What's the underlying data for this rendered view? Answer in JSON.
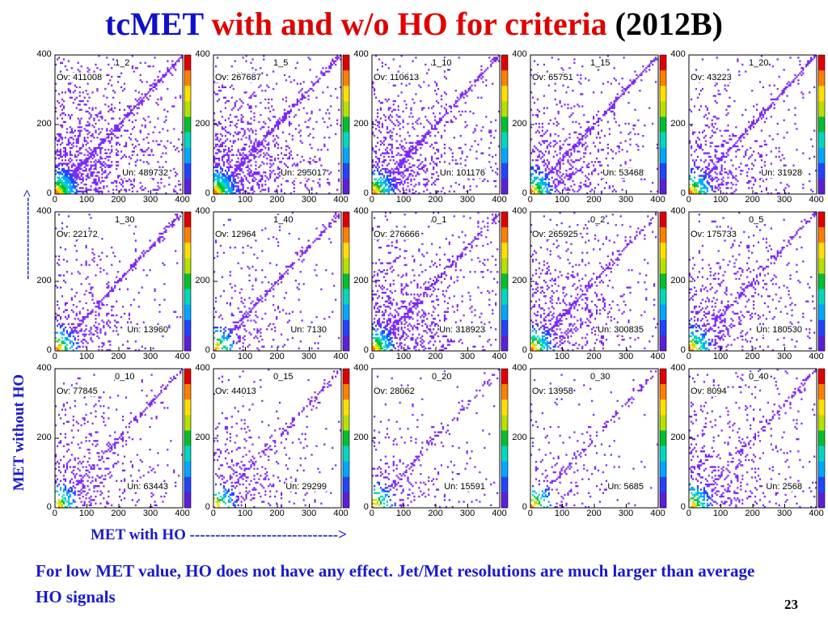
{
  "slide": {
    "title": {
      "part1": "tcMET",
      "part2": "with and w/o HO for criteria",
      "part3": "(2012B)"
    },
    "y_axis_title": "MET without HO",
    "y_axis_arrow": "------------------>",
    "x_axis_title": "MET with HO  ----------------------------->",
    "note": "For low MET value, HO does not have any effect. Jet/Met resolutions are much larger than average HO signals",
    "page_number": "23"
  },
  "colors": {
    "title_blue": "#1010c8",
    "title_red": "#e00000",
    "text_blue": "#1a1acc",
    "histogram_base": "#7b28f5",
    "palette": [
      "#5c1fd9",
      "#2244ff",
      "#00a8ff",
      "#00d8c0",
      "#00c030",
      "#b8e000",
      "#ffe000",
      "#ff8000",
      "#e00000"
    ]
  },
  "chart_data": {
    "type": "heatmap",
    "description_note": "",
    "xlim": [
      0,
      400
    ],
    "ylim": [
      0,
      400
    ],
    "x_ticks": [
      "0",
      "100",
      "200",
      "300",
      "400"
    ],
    "y_ticks": [
      "0",
      "200",
      "400"
    ],
    "panels": [
      {
        "label": "1_2",
        "overflow": "Ov: 411008",
        "underflow": "Un: 489732"
      },
      {
        "label": "1_5",
        "overflow": "Ov: 267687",
        "underflow": "Un: 295017"
      },
      {
        "label": "1_10",
        "overflow": "Ov: 110613",
        "underflow": "Un: 101176"
      },
      {
        "label": "1_15",
        "overflow": "Ov: 65751",
        "underflow": "Un: 53468"
      },
      {
        "label": "1_20",
        "overflow": "Ov: 43223",
        "underflow": "Un: 31928"
      },
      {
        "label": "1_30",
        "overflow": "Ov: 22172",
        "underflow": "Un: 13960"
      },
      {
        "label": "1_40",
        "overflow": "Ov: 12964",
        "underflow": "Un: 7130"
      },
      {
        "label": "0_1",
        "overflow": "Ov: 276666",
        "underflow": "Un: 318923"
      },
      {
        "label": "0_2",
        "overflow": "Ov: 265925",
        "underflow": "Un: 300835"
      },
      {
        "label": "0_5",
        "overflow": "Ov: 175733",
        "underflow": "Un: 180530"
      },
      {
        "label": "0_10",
        "overflow": "Ov: 77845",
        "underflow": "Un: 63443"
      },
      {
        "label": "0_15",
        "overflow": "Ov: 44013",
        "underflow": "Un: 29299"
      },
      {
        "label": "0_20",
        "overflow": "Ov: 28062",
        "underflow": "Un: 15591"
      },
      {
        "label": "0_30",
        "overflow": "Ov: 13958",
        "underflow": "Un: 5685"
      },
      {
        "label": "0_40",
        "overflow": "Ov: 8094",
        "underflow": "Un: 2568"
      }
    ]
  }
}
